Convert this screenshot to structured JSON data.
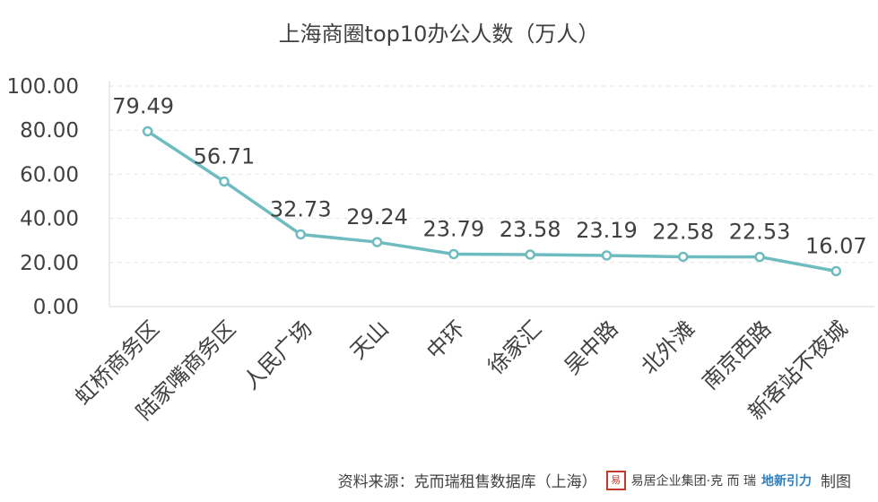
{
  "chart_data": {
    "type": "line",
    "title": "上海商圈top10办公人数（万人）",
    "categories": [
      "虹桥商务区",
      "陆家嘴商务区",
      "人民广场",
      "天山",
      "中环",
      "徐家汇",
      "吴中路",
      "北外滩",
      "南京西路",
      "新客站不夜城"
    ],
    "values": [
      79.49,
      56.71,
      32.73,
      29.24,
      23.79,
      23.58,
      23.19,
      22.58,
      22.53,
      16.07
    ],
    "value_labels": [
      "79.49",
      "56.71",
      "32.73",
      "29.24",
      "23.79",
      "23.58",
      "23.19",
      "22.58",
      "22.53",
      "16.07"
    ],
    "ylim": [
      0,
      100
    ],
    "yticks": [
      "0.00",
      "20.00",
      "40.00",
      "60.00",
      "80.00",
      "100.00"
    ],
    "xlabel": "",
    "ylabel": "",
    "grid": true,
    "line_color": "#6fbcc0",
    "grid_color": "#e6e6e6"
  },
  "footer": {
    "source": "资料来源：克而瑞租售数据库（上海）",
    "brand_seal": "易",
    "brand_a": "易居企业集团·克 而 瑞",
    "brand_b": "地新引力",
    "suffix": "制图"
  }
}
